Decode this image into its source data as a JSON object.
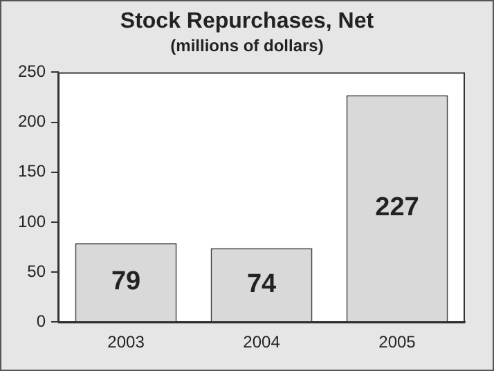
{
  "chart_data": {
    "type": "bar",
    "title": "Stock Repurchases, Net",
    "subtitle": "(millions of dollars)",
    "categories": [
      "2003",
      "2004",
      "2005"
    ],
    "values": [
      79,
      74,
      227
    ],
    "color": "#d9d9d9",
    "ylim": [
      0,
      250
    ],
    "yticks": [
      0,
      50,
      100,
      150,
      200,
      250
    ],
    "grid": false,
    "legend": false,
    "data_labels": true
  }
}
